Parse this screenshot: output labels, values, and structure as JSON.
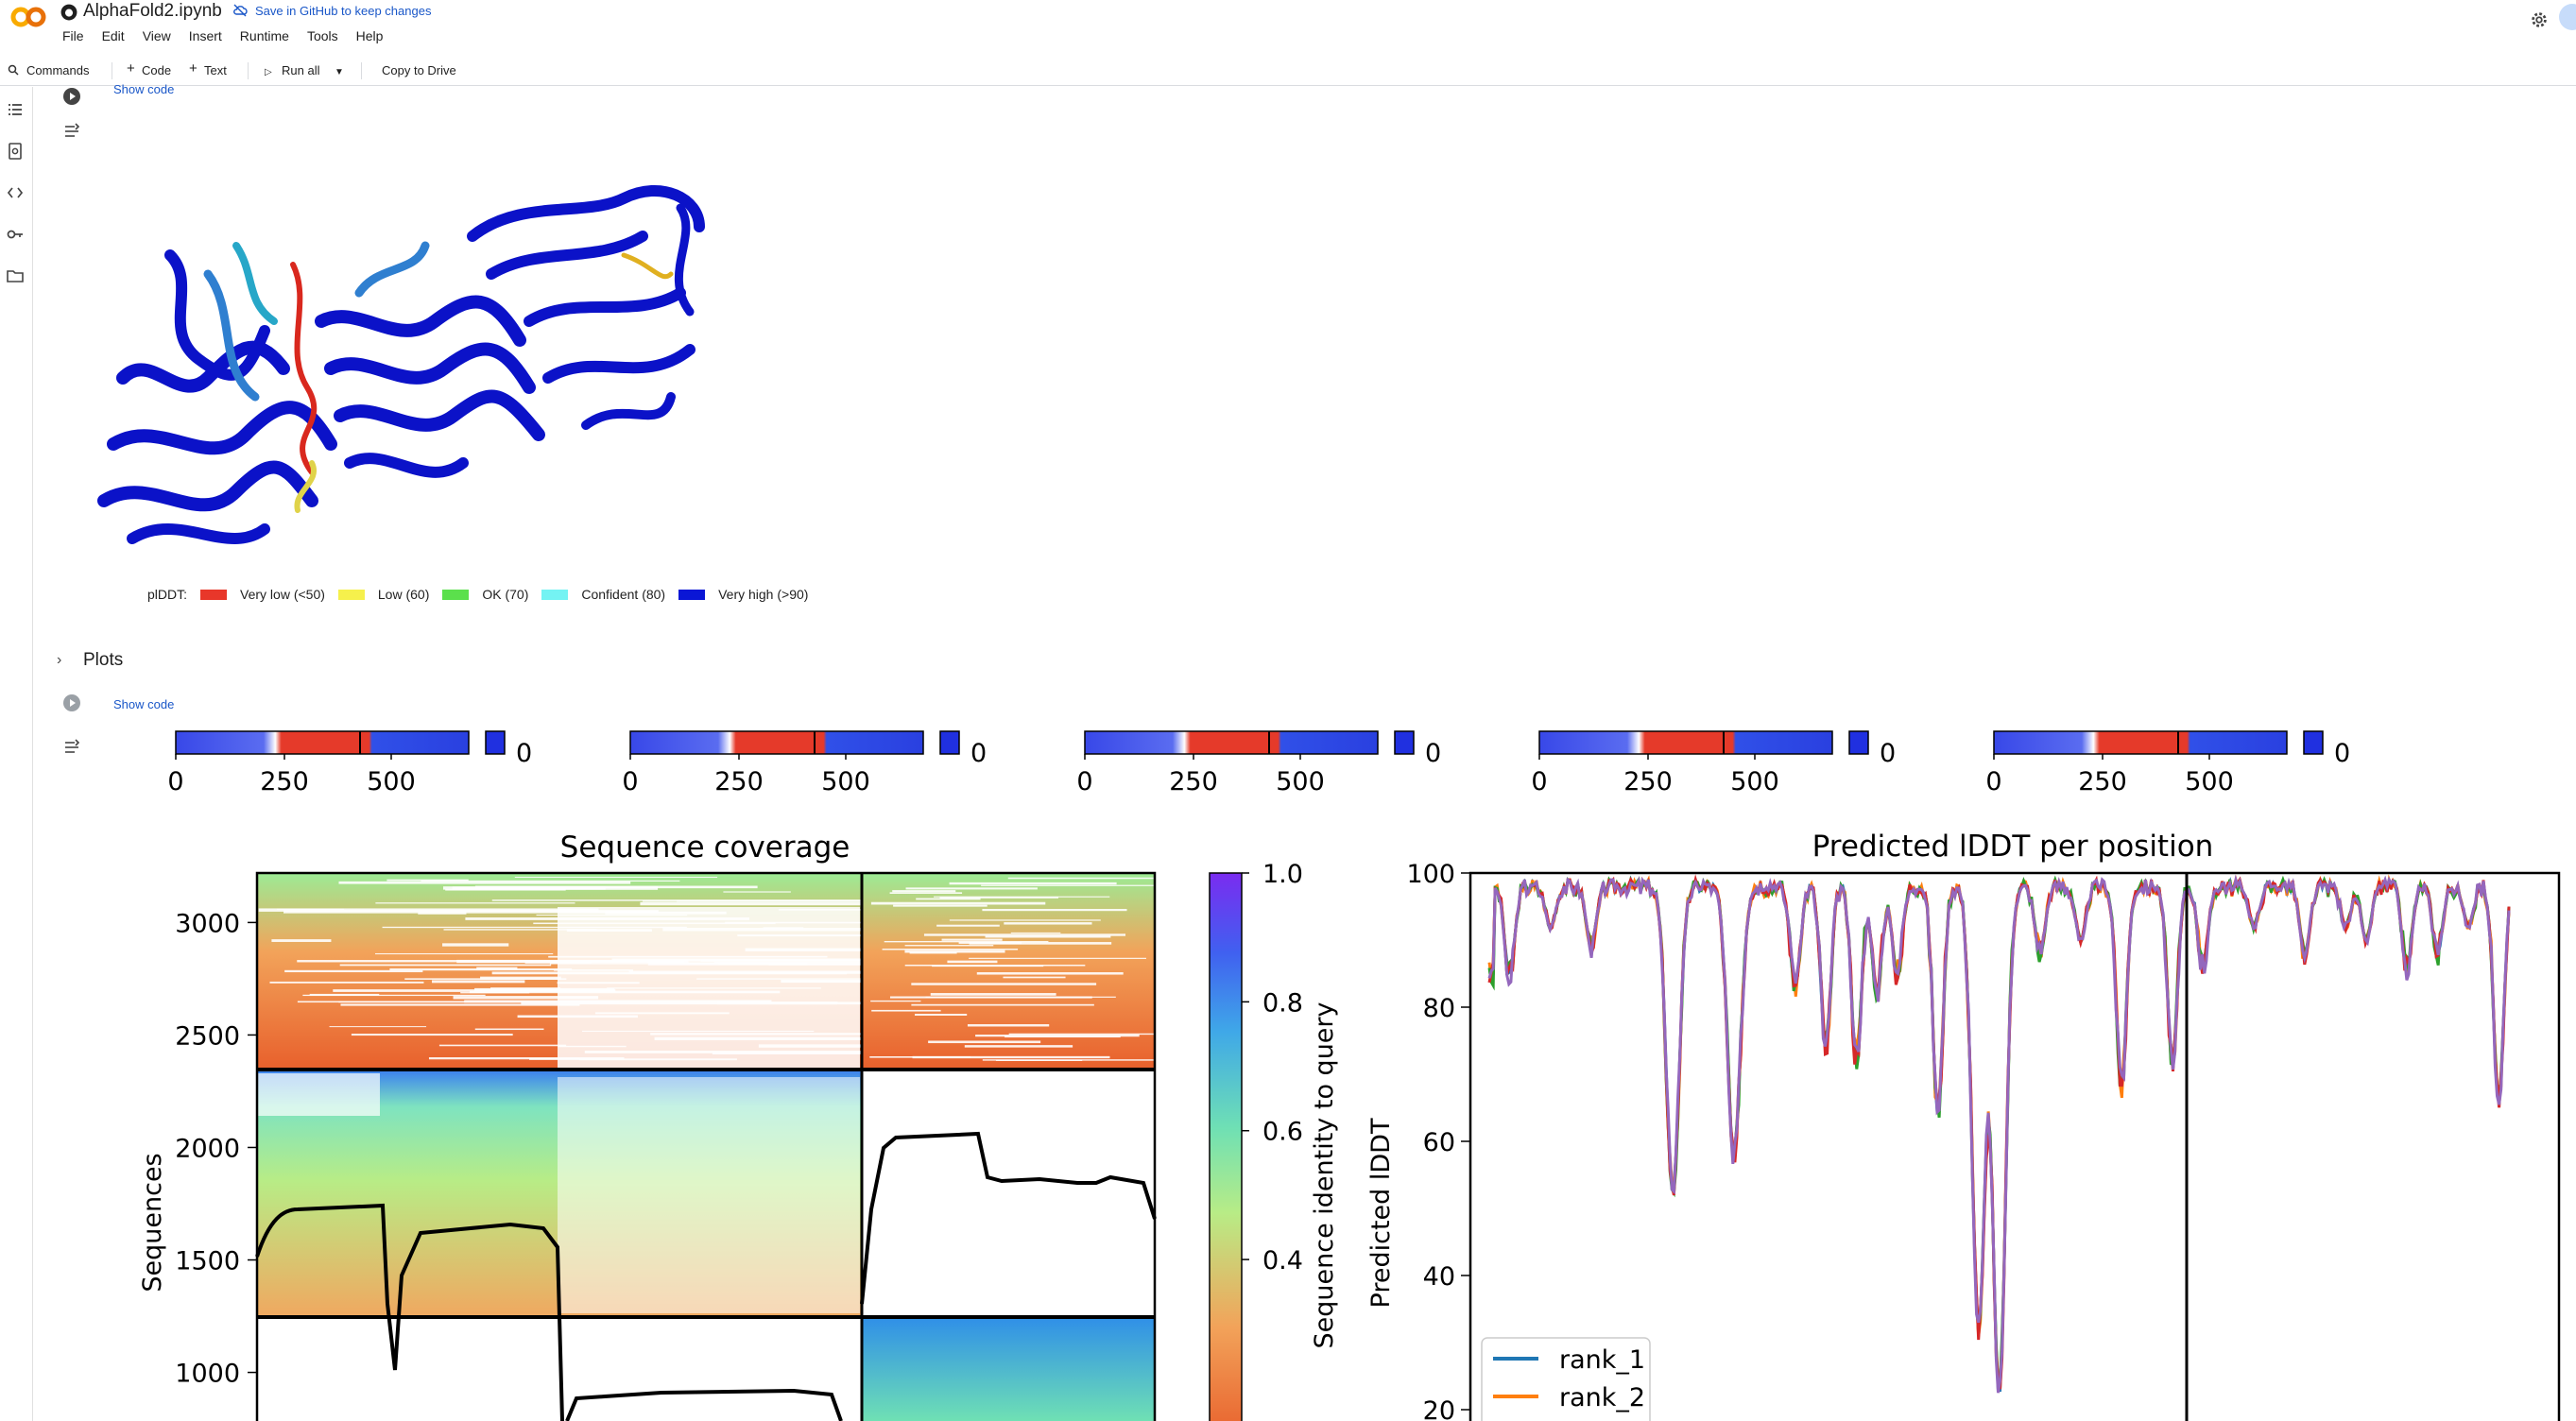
{
  "header": {
    "notebook_title": "AlphaFold2.ipynb",
    "save_link": "Save in GitHub to keep changes",
    "menu": [
      "File",
      "Edit",
      "View",
      "Insert",
      "Runtime",
      "Tools",
      "Help"
    ]
  },
  "toolbar": {
    "commands_label": "Commands",
    "code_label": "Code",
    "text_label": "Text",
    "run_all_label": "Run all",
    "copy_label": "Copy to Drive"
  },
  "cells": {
    "show_code_1": "Show code",
    "show_code_2": "Show code",
    "plots_heading": "Plots"
  },
  "plddt_legend": {
    "title": "plDDT:",
    "items": [
      {
        "label": "Very low (<50)",
        "color": "#e8372a"
      },
      {
        "label": "Low (60)",
        "color": "#f6f04c"
      },
      {
        "label": "OK (70)",
        "color": "#5be04c"
      },
      {
        "label": "Confident (80)",
        "color": "#74f3f3"
      },
      {
        "label": "Very high (>90)",
        "color": "#0a16d6"
      }
    ]
  },
  "mini_plots": {
    "xticks": [
      "0",
      "250",
      "500"
    ],
    "side_label": "0",
    "count": 5
  },
  "chart_data": [
    {
      "type": "heatmap",
      "title": "Sequence coverage",
      "xlabel": "",
      "ylabel": "Sequences",
      "yticks": [
        1000,
        1500,
        2000,
        2500,
        3000
      ],
      "ylim": [
        700,
        3220
      ],
      "colorbar": {
        "label": "Sequence identity to query",
        "ticks": [
          0.4,
          0.6,
          0.8,
          1.0
        ],
        "colors": [
          "#e8602c",
          "#f2a35a",
          "#b8ec86",
          "#6fe0b4",
          "#3fa8e8",
          "#4060f0",
          "#7a2cf0"
        ]
      }
    },
    {
      "type": "line",
      "title": "Predicted lDDT per position",
      "xlabel": "",
      "ylabel": "Predicted lDDT",
      "ylim": [
        20,
        100
      ],
      "yticks": [
        20,
        40,
        60,
        80,
        100
      ],
      "series": [
        {
          "name": "rank_1",
          "color": "#1f77b4"
        },
        {
          "name": "rank_2",
          "color": "#ff7f0e"
        }
      ],
      "extra_series_colors": [
        "#2ca02c",
        "#d62728",
        "#9467bd"
      ]
    }
  ]
}
